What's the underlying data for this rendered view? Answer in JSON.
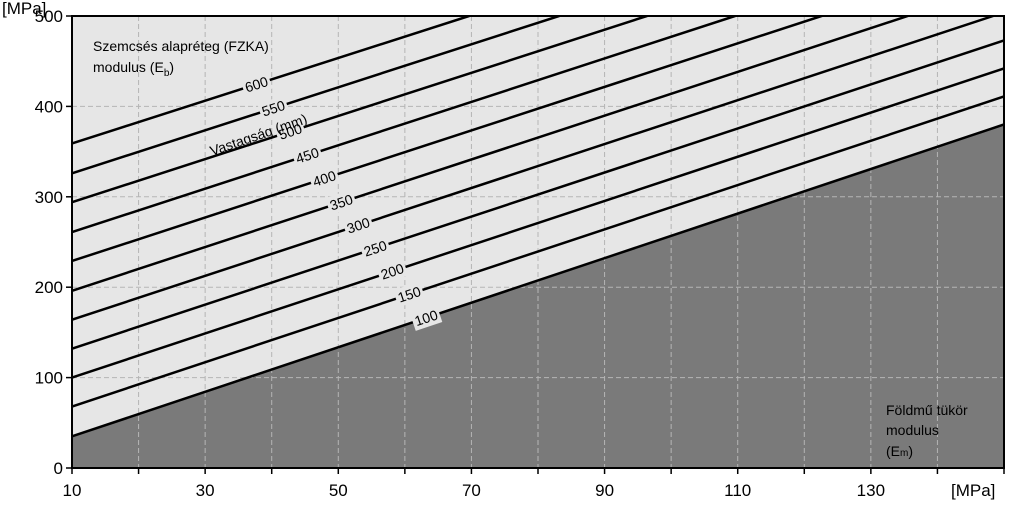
{
  "chart_data": {
    "type": "line",
    "x_unit": "[MPa]",
    "y_unit": "[MPa]",
    "xlim": [
      10,
      150
    ],
    "ylim": [
      0,
      500
    ],
    "x_ticks": [
      10,
      30,
      50,
      70,
      90,
      110,
      130
    ],
    "y_ticks": [
      0,
      100,
      200,
      300,
      400,
      500
    ],
    "grid": true,
    "limit_line": {
      "y": 500,
      "style": "dashed"
    },
    "colors": {
      "plot_bg": "#e6e6e6",
      "lower_region": "#7a7a7a",
      "line": "#000000",
      "grid": "#b5b5b5"
    },
    "annotations": {
      "top_left_line1": "Szemcsés alapréteg  (FZKA)",
      "top_left_line2_main": "modulus (E",
      "top_left_line2_sub": "b",
      "top_left_line2_end": ")",
      "thickness_title": "Vastagság (mm)",
      "bottom_right_line1": "Földmű tükör",
      "bottom_right_line2": "modulus",
      "bottom_right_line3_main": "(E",
      "bottom_right_line3_sub": "m",
      "bottom_right_line3_end": ")"
    },
    "series": [
      {
        "name": "100",
        "x": [
          10,
          150
        ],
        "y": [
          35,
          380
        ]
      },
      {
        "name": "150",
        "x": [
          10,
          150
        ],
        "y": [
          68,
          411
        ]
      },
      {
        "name": "200",
        "x": [
          10,
          150
        ],
        "y": [
          100,
          442
        ]
      },
      {
        "name": "250",
        "x": [
          10,
          150
        ],
        "y": [
          132,
          473
        ]
      },
      {
        "name": "300",
        "x": [
          10,
          150
        ],
        "y": [
          164,
          504
        ]
      },
      {
        "name": "350",
        "x": [
          10,
          150
        ],
        "y": [
          196,
          535
        ]
      },
      {
        "name": "400",
        "x": [
          10,
          150
        ],
        "y": [
          229,
          566
        ]
      },
      {
        "name": "450",
        "x": [
          10,
          150
        ],
        "y": [
          261,
          597
        ]
      },
      {
        "name": "500",
        "x": [
          10,
          150
        ],
        "y": [
          294,
          628
        ]
      },
      {
        "name": "550",
        "x": [
          10,
          150
        ],
        "y": [
          326,
          659
        ]
      },
      {
        "name": "600",
        "x": [
          10,
          150
        ],
        "y": [
          359,
          690
        ]
      }
    ]
  }
}
